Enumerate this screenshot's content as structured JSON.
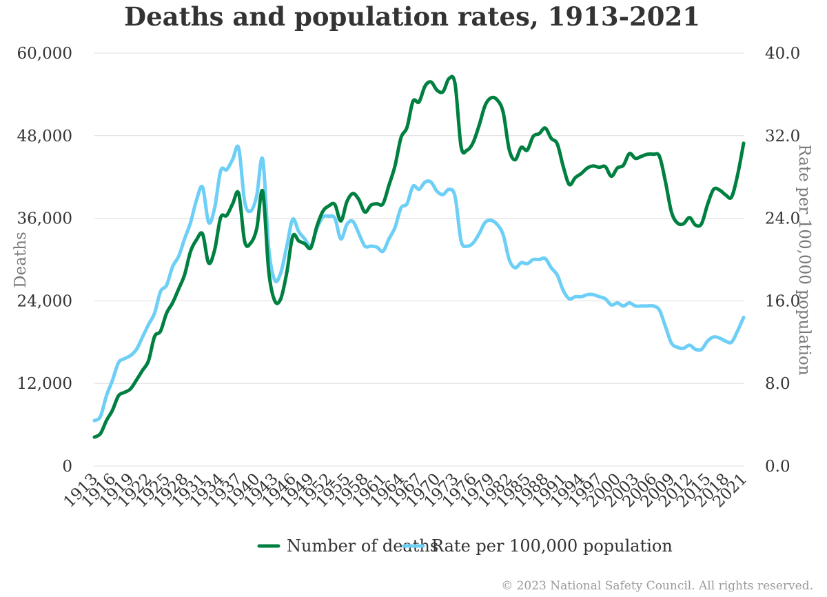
{
  "copyright": "© 2023 National Safety Council. All rights reserved.",
  "chart_data": {
    "type": "line",
    "title": "Deaths and population rates, 1913-2021",
    "xlabel": "",
    "ylabel": "Deaths",
    "y2label": "Rate per 100,000 population",
    "xlim": [
      1913,
      2021
    ],
    "ylim": [
      0,
      60000
    ],
    "y2lim": [
      0,
      40
    ],
    "yticks": [
      "0",
      "12,000",
      "24,000",
      "36,000",
      "48,000",
      "60,000"
    ],
    "y2ticks": [
      "0.0",
      "8.0",
      "16.0",
      "24.0",
      "32.0",
      "40.0"
    ],
    "xticks": [
      "1913",
      "1916",
      "1919",
      "1922",
      "1925",
      "1928",
      "1931",
      "1934",
      "1937",
      "1940",
      "1943",
      "1946",
      "1949",
      "1952",
      "1955",
      "1958",
      "1961",
      "1964",
      "1967",
      "1970",
      "1973",
      "1976",
      "1979",
      "1982",
      "1985",
      "1988",
      "1991",
      "1994",
      "1997",
      "2000",
      "2003",
      "2006",
      "2009",
      "2012",
      "2015",
      "2018",
      "2021"
    ],
    "grid": true,
    "legend_position": "bottom",
    "colors": {
      "deaths": "#008040",
      "rate": "#6ecff6"
    },
    "series": [
      {
        "name": "Number of deaths",
        "axis": "left",
        "x": [
          1913,
          1914,
          1915,
          1916,
          1917,
          1918,
          1919,
          1920,
          1921,
          1922,
          1923,
          1924,
          1925,
          1926,
          1927,
          1928,
          1929,
          1930,
          1931,
          1932,
          1933,
          1934,
          1935,
          1936,
          1937,
          1938,
          1939,
          1940,
          1941,
          1942,
          1943,
          1944,
          1945,
          1946,
          1947,
          1948,
          1949,
          1950,
          1951,
          1952,
          1953,
          1954,
          1955,
          1956,
          1957,
          1958,
          1959,
          1960,
          1961,
          1962,
          1963,
          1964,
          1965,
          1966,
          1967,
          1968,
          1969,
          1970,
          1971,
          1972,
          1973,
          1974,
          1975,
          1976,
          1977,
          1978,
          1979,
          1980,
          1981,
          1982,
          1983,
          1984,
          1985,
          1986,
          1987,
          1988,
          1989,
          1990,
          1991,
          1992,
          1993,
          1994,
          1995,
          1996,
          1997,
          1998,
          1999,
          2000,
          2001,
          2002,
          2003,
          2004,
          2005,
          2006,
          2007,
          2008,
          2009,
          2010,
          2011,
          2012,
          2013,
          2014,
          2015,
          2016,
          2017,
          2018,
          2019,
          2020,
          2021
        ],
        "values": [
          4200,
          4700,
          6600,
          8100,
          10200,
          10700,
          11200,
          12500,
          13900,
          15300,
          18800,
          19600,
          22200,
          23700,
          25700,
          27800,
          31200,
          32900,
          33700,
          29500,
          31400,
          36100,
          36400,
          38100,
          39600,
          32600,
          32400,
          34500,
          39900,
          28300,
          24000,
          24300,
          28100,
          33400,
          32700,
          32300,
          31700,
          34800,
          37000,
          37800,
          38000,
          35600,
          38400,
          39600,
          38700,
          36900,
          37900,
          38100,
          38100,
          40800,
          43600,
          47700,
          49200,
          53000,
          52900,
          55200,
          55800,
          54600,
          54400,
          56300,
          55500,
          46400,
          45900,
          47000,
          49500,
          52400,
          53500,
          53200,
          51400,
          46000,
          44500,
          46300,
          45900,
          47900,
          48300,
          49100,
          47600,
          46800,
          43500,
          40900,
          41900,
          42500,
          43300,
          43600,
          43400,
          43500,
          42100,
          43300,
          43700,
          45400,
          44700,
          45000,
          45300,
          45300,
          45000,
          41300,
          36900,
          35300,
          35200,
          36100,
          35000,
          35200,
          38000,
          40200,
          40100,
          39400,
          39100,
          42300,
          46900
        ]
      },
      {
        "name": "Rate per 100,000 population",
        "axis": "right",
        "x": [
          1913,
          1914,
          1915,
          1916,
          1917,
          1918,
          1919,
          1920,
          1921,
          1922,
          1923,
          1924,
          1925,
          1926,
          1927,
          1928,
          1929,
          1930,
          1931,
          1932,
          1933,
          1934,
          1935,
          1936,
          1937,
          1938,
          1939,
          1940,
          1941,
          1942,
          1943,
          1944,
          1945,
          1946,
          1947,
          1948,
          1949,
          1950,
          1951,
          1952,
          1953,
          1954,
          1955,
          1956,
          1957,
          1958,
          1959,
          1960,
          1961,
          1962,
          1963,
          1964,
          1965,
          1966,
          1967,
          1968,
          1969,
          1970,
          1971,
          1972,
          1973,
          1974,
          1975,
          1976,
          1977,
          1978,
          1979,
          1980,
          1981,
          1982,
          1983,
          1984,
          1985,
          1986,
          1987,
          1988,
          1989,
          1990,
          1991,
          1992,
          1993,
          1994,
          1995,
          1996,
          1997,
          1998,
          1999,
          2000,
          2001,
          2002,
          2003,
          2004,
          2005,
          2006,
          2007,
          2008,
          2009,
          2010,
          2011,
          2012,
          2013,
          2014,
          2015,
          2016,
          2017,
          2018,
          2019,
          2020,
          2021
        ],
        "values": [
          4.4,
          4.8,
          6.8,
          8.3,
          10.0,
          10.4,
          10.7,
          11.3,
          12.5,
          13.7,
          14.8,
          16.9,
          17.5,
          19.3,
          20.3,
          22.0,
          23.6,
          25.8,
          27.0,
          23.6,
          25.0,
          28.6,
          28.7,
          29.7,
          30.8,
          25.6,
          24.7,
          26.2,
          29.7,
          21.1,
          18.0,
          18.7,
          21.3,
          23.9,
          22.7,
          22.0,
          21.3,
          23.0,
          24.1,
          24.2,
          24.0,
          22.0,
          23.4,
          23.7,
          22.5,
          21.3,
          21.3,
          21.2,
          20.8,
          22.0,
          23.1,
          25.0,
          25.4,
          27.1,
          26.8,
          27.5,
          27.5,
          26.6,
          26.3,
          26.8,
          26.1,
          21.8,
          21.3,
          21.6,
          22.5,
          23.6,
          23.8,
          23.4,
          22.4,
          20.0,
          19.2,
          19.7,
          19.6,
          20.0,
          20.0,
          20.1,
          19.2,
          18.5,
          17.0,
          16.2,
          16.4,
          16.4,
          16.6,
          16.6,
          16.4,
          16.2,
          15.6,
          15.8,
          15.5,
          15.8,
          15.5,
          15.5,
          15.5,
          15.5,
          15.1,
          13.5,
          11.9,
          11.5,
          11.4,
          11.7,
          11.3,
          11.3,
          12.1,
          12.5,
          12.4,
          12.1,
          12.0,
          13.1,
          14.4
        ]
      }
    ]
  }
}
